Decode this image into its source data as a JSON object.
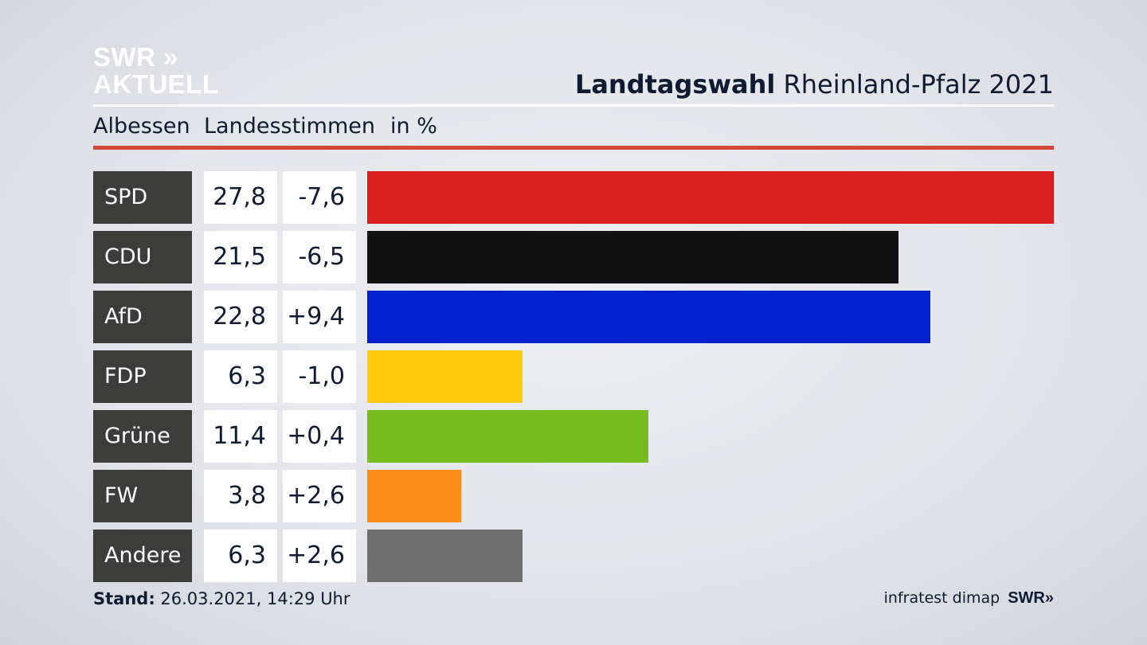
{
  "header": {
    "logo_line1": "SWR »",
    "logo_line2": "AKTUELL",
    "title_bold": "Landtagswahl",
    "title_rest": "Rheinland-Pfalz 2021",
    "sub_location": "Albessen",
    "sub_type": "Landesstimmen",
    "sub_unit": "in %"
  },
  "footer": {
    "stand_label": "Stand:",
    "stand_value": "26.03.2021, 14:29 Uhr",
    "source": "infratest dimap",
    "source_logo": "SWR»"
  },
  "colors": {
    "header_rule": "#d1483c",
    "party_label_bg": "#3c3c3b"
  },
  "chart_data": {
    "type": "bar",
    "orientation": "horizontal",
    "unit": "in %",
    "xlim": [
      0,
      27.8
    ],
    "categories": [
      "SPD",
      "CDU",
      "AfD",
      "FDP",
      "Grüne",
      "FW",
      "Andere"
    ],
    "values": [
      27.8,
      21.5,
      22.8,
      6.3,
      11.4,
      3.8,
      6.3
    ],
    "value_labels": [
      "27,8",
      "21,5",
      "22,8",
      "6,3",
      "11,4",
      "3,8",
      "6,3"
    ],
    "diff_labels": [
      "-7,6",
      "-6,5",
      "+9,4",
      "-1,0",
      "+0,4",
      "+2,6",
      "+2,6"
    ],
    "bar_colors": [
      "#d71f20",
      "#121212",
      "#0021cc",
      "#fecc0a",
      "#77bc1f",
      "#fd8d17",
      "#707070"
    ]
  }
}
